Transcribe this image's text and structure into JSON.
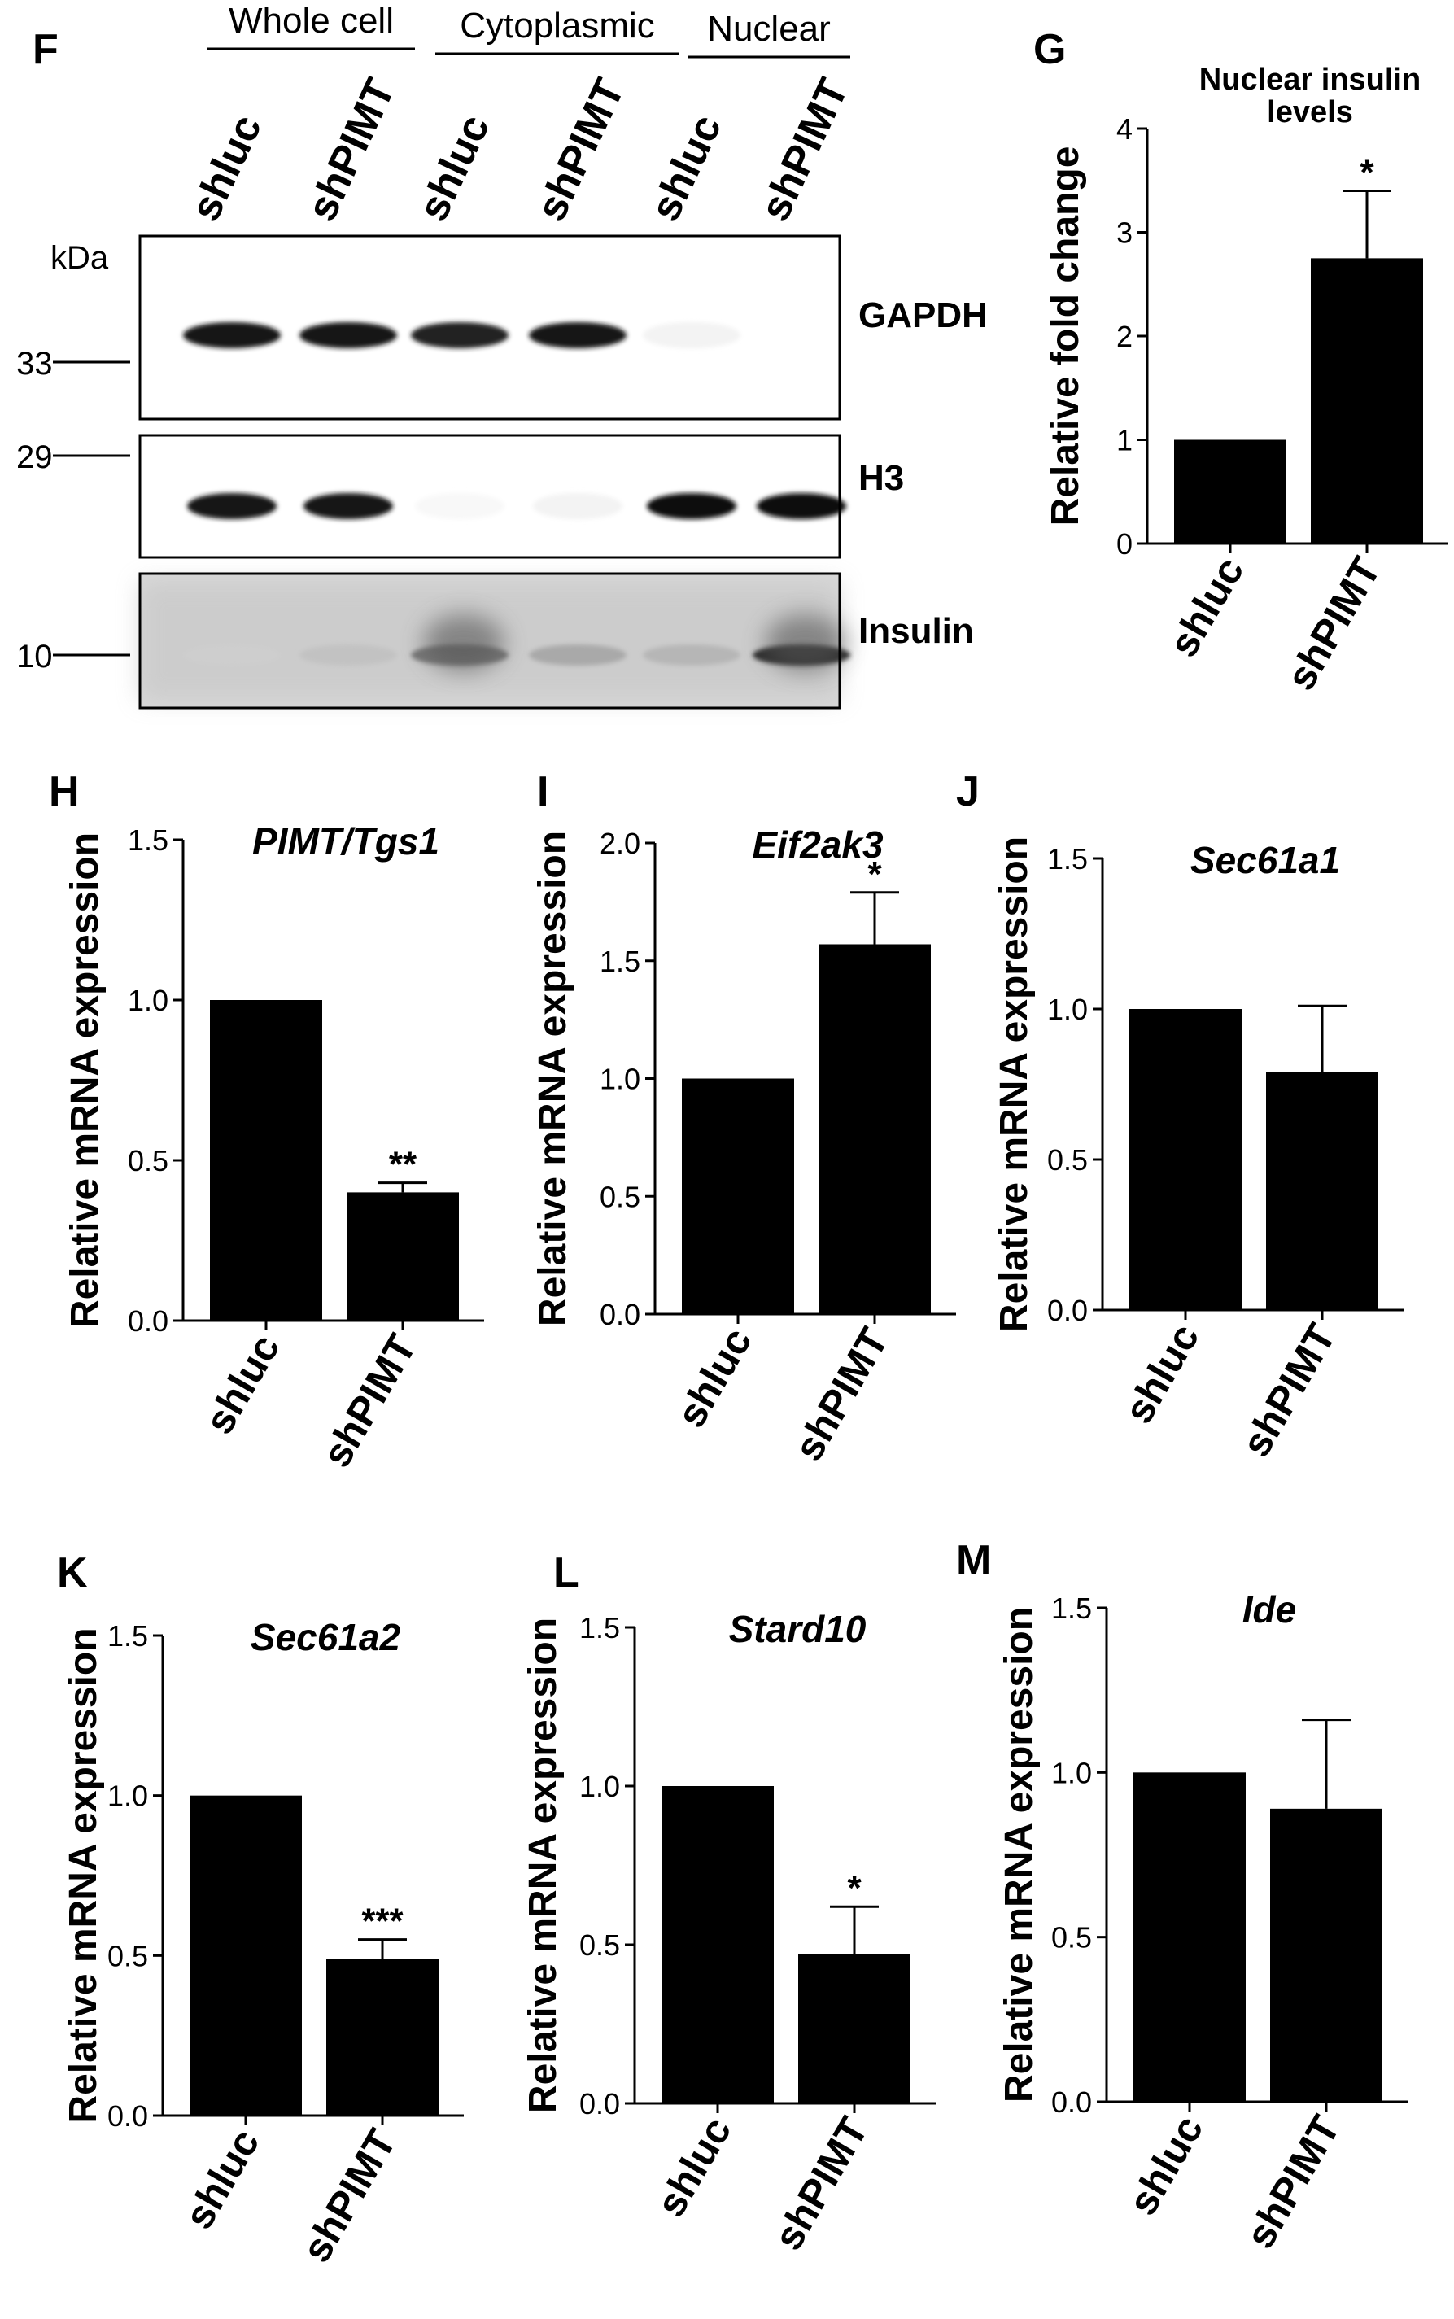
{
  "blot": {
    "panel_letter": "F",
    "groups": [
      "Whole cell",
      "Cytoplasmic",
      "Nuclear"
    ],
    "lanes": [
      "shluc",
      "shPIMT",
      "shluc",
      "shPIMT",
      "shluc",
      "shPIMT"
    ],
    "kda_label": "kDa",
    "markers": [
      "33",
      "29",
      "10"
    ],
    "proteins": [
      "GAPDH",
      "H3",
      "Insulin"
    ],
    "band_intensity": {
      "GAPDH": [
        0.95,
        0.95,
        0.9,
        0.95,
        0.05,
        0.0
      ],
      "H3": [
        0.95,
        0.95,
        0.03,
        0.05,
        1.0,
        1.0
      ],
      "Insulin": [
        0.2,
        0.25,
        0.55,
        0.35,
        0.3,
        0.85
      ]
    }
  },
  "chart_data": [
    {
      "id": "G",
      "type": "bar",
      "title": "Nuclear insulin levels",
      "title_lines": [
        "Nuclear insulin",
        "levels"
      ],
      "title_italic": false,
      "categories": [
        "shluc",
        "shPIMT"
      ],
      "values": [
        1.0,
        2.75
      ],
      "errors": [
        0,
        0.65
      ],
      "significance": [
        "",
        "*"
      ],
      "ylabel": "Relative fold change",
      "ylim": [
        0,
        4
      ],
      "yticks": [
        0,
        1,
        2,
        3,
        4
      ],
      "ytick_labels": [
        "0",
        "1",
        "2",
        "3",
        "4"
      ]
    },
    {
      "id": "H",
      "type": "bar",
      "title": "PIMT/Tgs1",
      "title_italic": true,
      "categories": [
        "shluc",
        "shPIMT"
      ],
      "values": [
        1.0,
        0.4
      ],
      "errors": [
        0,
        0.03
      ],
      "significance": [
        "",
        "**"
      ],
      "ylabel": "Relative mRNA expression",
      "ylim": [
        0,
        1.5
      ],
      "yticks": [
        0,
        0.5,
        1.0,
        1.5
      ],
      "ytick_labels": [
        "0.0",
        "0.5",
        "1.0",
        "1.5"
      ]
    },
    {
      "id": "I",
      "type": "bar",
      "title": "Eif2ak3",
      "title_italic": true,
      "categories": [
        "shluc",
        "shPIMT"
      ],
      "values": [
        1.0,
        1.57
      ],
      "errors": [
        0,
        0.22
      ],
      "significance": [
        "",
        "*"
      ],
      "ylabel": "Relative mRNA expression",
      "ylim": [
        0,
        2.0
      ],
      "yticks": [
        0,
        0.5,
        1.0,
        1.5,
        2.0
      ],
      "ytick_labels": [
        "0.0",
        "0.5",
        "1.0",
        "1.5",
        "2.0"
      ]
    },
    {
      "id": "J",
      "type": "bar",
      "title": "Sec61a1",
      "title_italic": true,
      "categories": [
        "shluc",
        "shPIMT"
      ],
      "values": [
        1.0,
        0.79
      ],
      "errors": [
        0,
        0.22
      ],
      "significance": [
        "",
        ""
      ],
      "ylabel": "Relative mRNA expression",
      "ylim": [
        0,
        1.5
      ],
      "yticks": [
        0,
        0.5,
        1.0,
        1.5
      ],
      "ytick_labels": [
        "0.0",
        "0.5",
        "1.0",
        "1.5"
      ]
    },
    {
      "id": "K",
      "type": "bar",
      "title": "Sec61a2",
      "title_italic": true,
      "categories": [
        "shluc",
        "shPIMT"
      ],
      "values": [
        1.0,
        0.49
      ],
      "errors": [
        0,
        0.06
      ],
      "significance": [
        "",
        "***"
      ],
      "ylabel": "Relative mRNA expression",
      "ylim": [
        0,
        1.5
      ],
      "yticks": [
        0,
        0.5,
        1.0,
        1.5
      ],
      "ytick_labels": [
        "0.0",
        "0.5",
        "1.0",
        "1.5"
      ]
    },
    {
      "id": "L",
      "type": "bar",
      "title": "Stard10",
      "title_italic": true,
      "categories": [
        "shluc",
        "shPIMT"
      ],
      "values": [
        1.0,
        0.47
      ],
      "errors": [
        0,
        0.15
      ],
      "significance": [
        "",
        "*"
      ],
      "ylabel": "Relative mRNA expression",
      "ylim": [
        0,
        1.5
      ],
      "yticks": [
        0,
        0.5,
        1.0,
        1.5
      ],
      "ytick_labels": [
        "0.0",
        "0.5",
        "1.0",
        "1.5"
      ]
    },
    {
      "id": "M",
      "type": "bar",
      "title": "Ide",
      "title_italic": true,
      "categories": [
        "shluc",
        "shPIMT"
      ],
      "values": [
        1.0,
        0.89
      ],
      "errors": [
        0,
        0.27
      ],
      "significance": [
        "",
        ""
      ],
      "ylabel": "Relative mRNA expression",
      "ylim": [
        0,
        1.5
      ],
      "yticks": [
        0,
        0.5,
        1.0,
        1.5
      ],
      "ytick_labels": [
        "0.0",
        "0.5",
        "1.0",
        "1.5"
      ]
    }
  ]
}
